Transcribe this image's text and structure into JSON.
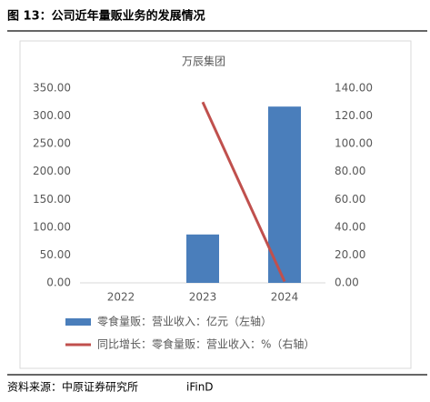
{
  "header": {
    "title": "图 13：公司近年量贩业务的发展情况"
  },
  "chart_data": {
    "type": "bar",
    "title": "万辰集团",
    "categories": [
      "2022",
      "2023",
      "2024"
    ],
    "series": [
      {
        "name": "零食量贩：营业收入：亿元（左轴）",
        "type": "bar",
        "color": "#4a7ebb",
        "values": [
          null,
          87,
          317
        ]
      },
      {
        "name": "同比增长：零食量贩：营业收入：%（右轴）",
        "type": "line",
        "axis": "y2",
        "color": "#c0504d",
        "values": [
          null,
          130,
          1
        ]
      }
    ],
    "ylim": [
      0,
      350
    ],
    "yticks": [
      {
        "value": 0,
        "label": "0.00"
      },
      {
        "value": 50,
        "label": "50.00"
      },
      {
        "value": 100,
        "label": "100.00"
      },
      {
        "value": 150,
        "label": "150.00"
      },
      {
        "value": 200,
        "label": "200.00"
      },
      {
        "value": 250,
        "label": "250.00"
      },
      {
        "value": 300,
        "label": "300.00"
      },
      {
        "value": 350,
        "label": "350.00"
      }
    ],
    "y2lim": [
      0,
      140
    ],
    "y2ticks": [
      {
        "value": 0,
        "label": "0.00"
      },
      {
        "value": 20,
        "label": "20.00"
      },
      {
        "value": 40,
        "label": "40.00"
      },
      {
        "value": 60,
        "label": "60.00"
      },
      {
        "value": 80,
        "label": "80.00"
      },
      {
        "value": 100,
        "label": "100.00"
      },
      {
        "value": 120,
        "label": "120.00"
      },
      {
        "value": 140,
        "label": "140.00"
      }
    ],
    "grid": false
  },
  "footer": {
    "source": "资料来源：中原证券研究所",
    "tool": "iFinD"
  }
}
